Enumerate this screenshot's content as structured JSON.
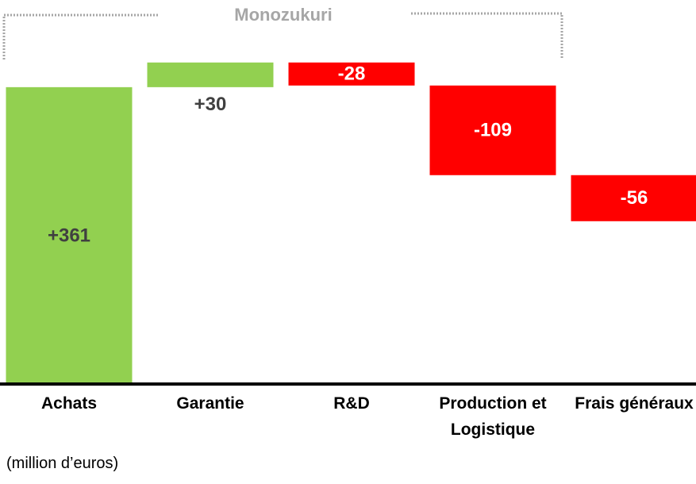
{
  "chart_data": {
    "type": "waterfall",
    "categories": [
      "Achats",
      "Garantie",
      "R&D",
      "Production et Logistique",
      "Frais généraux"
    ],
    "values": [
      361,
      30,
      -28,
      -109,
      -56
    ],
    "value_labels": [
      "+361",
      "+30",
      "-28",
      "-109",
      "-56"
    ],
    "positive_color": "#92d050",
    "negative_color": "#ff0000",
    "ylim": [
      0,
      467
    ],
    "annotations": {
      "group": "Monozukuri",
      "unit": "(million d’euros)"
    }
  }
}
